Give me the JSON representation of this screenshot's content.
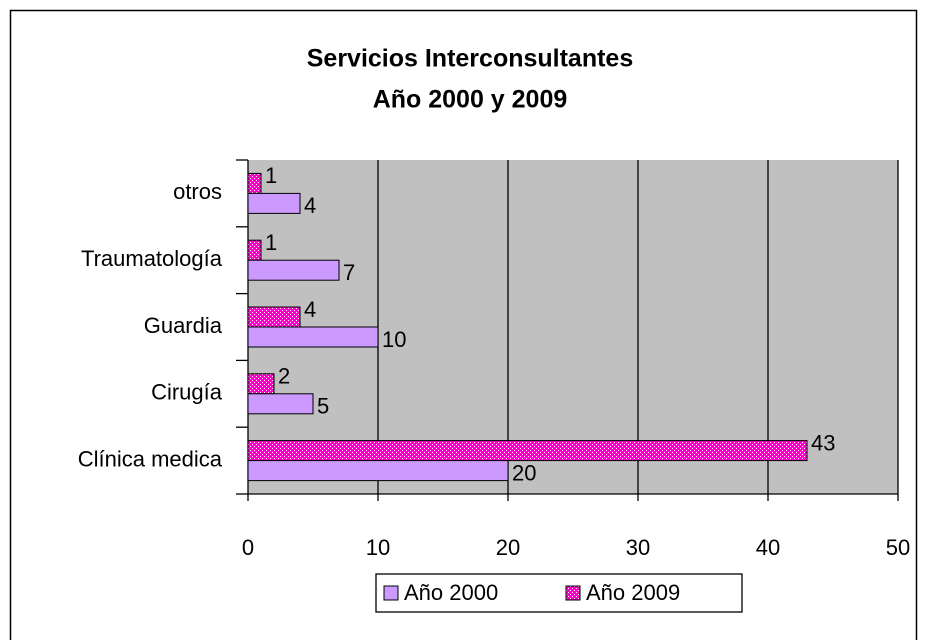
{
  "chart_data": {
    "type": "hbar",
    "title": [
      "Servicios Interconsultantes",
      "Año 2000 y 2009"
    ],
    "categories": [
      "Clínica medica",
      "Cirugía",
      "Guardia",
      "Traumatología",
      "otros"
    ],
    "series": [
      {
        "name": "Año 2000",
        "color": "#cc99ff",
        "values": [
          20,
          5,
          10,
          7,
          4
        ]
      },
      {
        "name": "Año 2009",
        "color": "#ff00cc",
        "values": [
          43,
          2,
          4,
          1,
          1
        ]
      }
    ],
    "xlim": [
      0,
      50
    ],
    "xticks": [
      0,
      10,
      20,
      30,
      40,
      50
    ],
    "grid": true,
    "legend": "bottom"
  }
}
